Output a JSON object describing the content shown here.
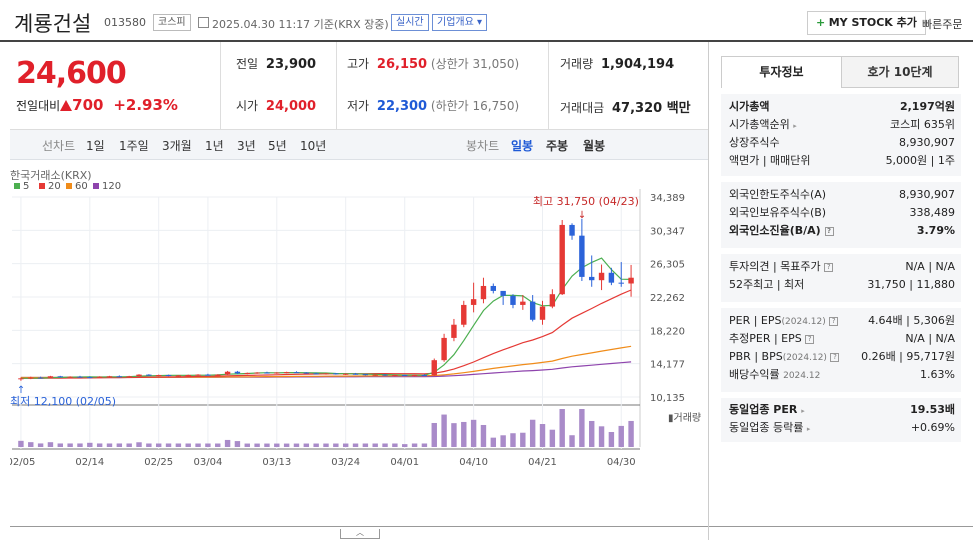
{
  "header": {
    "company_name": "계룡건설",
    "stock_code": "013580",
    "market_tag": "코스피",
    "datetime": "2025.04.30 11:17 기준(KRX 장중)",
    "realtime_tag": "실시간",
    "company_info_tag": "기업개요",
    "mystock_label": "MY STOCK 추가",
    "quick_order_label": "빠른주문"
  },
  "quote": {
    "price": "24,600",
    "change_label": "전일대비",
    "change_value": "700",
    "change_rate": "+2.93%",
    "prev_close_label": "전일",
    "prev_close": "23,900",
    "open_label": "시가",
    "open": "24,000",
    "high_label": "고가",
    "high": "26,150",
    "upper_limit": "(상한가 31,050)",
    "low_label": "저가",
    "low": "22,300",
    "lower_limit": "(하한가 16,750)",
    "volume_label": "거래량",
    "volume": "1,904,194",
    "amount_label": "거래대금",
    "amount": "47,320 백만"
  },
  "period_bar": {
    "select_label": "선차트",
    "periods": [
      "1일",
      "1주일",
      "3개월",
      "1년",
      "3년",
      "5년",
      "10년"
    ],
    "candle_label": "봉차트",
    "candles": [
      "일봉",
      "주봉",
      "월봉"
    ],
    "selected_candle": "일봉"
  },
  "chart_data": {
    "type": "candlestick",
    "source_label": "한국거래소(KRX)",
    "ma_legend": [
      {
        "name": "5",
        "color": "#4caf50"
      },
      {
        "name": "20",
        "color": "#e53935"
      },
      {
        "name": "60",
        "color": "#f08c1a"
      },
      {
        "name": "120",
        "color": "#8e44ad"
      }
    ],
    "y_ticks": [
      "34,389",
      "30,347",
      "26,305",
      "22,262",
      "18,220",
      "14,177",
      "10,135"
    ],
    "ylim": [
      10135,
      34389
    ],
    "x_ticks": [
      "02/05",
      "02/14",
      "02/25",
      "03/04",
      "03/13",
      "03/24",
      "04/01",
      "04/10",
      "04/21",
      "04/30"
    ],
    "high_annotation": "최고 31,750 (04/23)",
    "low_annotation": "최저 12,100 (02/05)",
    "volume_label": "거래량",
    "candles": [
      [
        12300,
        12500,
        12100,
        12400
      ],
      [
        12400,
        12600,
        12300,
        12500
      ],
      [
        12500,
        12600,
        12400,
        12450
      ],
      [
        12450,
        12700,
        12400,
        12650
      ],
      [
        12650,
        12700,
        12500,
        12550
      ],
      [
        12550,
        12650,
        12450,
        12600
      ],
      [
        12600,
        12700,
        12500,
        12550
      ],
      [
        12550,
        12650,
        12400,
        12500
      ],
      [
        12500,
        12650,
        12450,
        12600
      ],
      [
        12600,
        12700,
        12500,
        12650
      ],
      [
        12650,
        12750,
        12550,
        12600
      ],
      [
        12600,
        12700,
        12500,
        12650
      ],
      [
        12650,
        12900,
        12600,
        12850
      ],
      [
        12850,
        12900,
        12700,
        12750
      ],
      [
        12750,
        12850,
        12650,
        12800
      ],
      [
        12800,
        12850,
        12650,
        12700
      ],
      [
        12700,
        12800,
        12600,
        12750
      ],
      [
        12750,
        12850,
        12650,
        12800
      ],
      [
        12800,
        12900,
        12700,
        12850
      ],
      [
        12850,
        12950,
        12750,
        12800
      ],
      [
        12800,
        12900,
        12700,
        12850
      ],
      [
        12850,
        13300,
        12800,
        13200
      ],
      [
        13200,
        13300,
        12900,
        13000
      ],
      [
        13000,
        13100,
        12900,
        13050
      ],
      [
        13050,
        13150,
        12950,
        13100
      ],
      [
        13100,
        13200,
        13000,
        13050
      ],
      [
        13050,
        13150,
        12950,
        13100
      ],
      [
        13100,
        13200,
        13000,
        13150
      ],
      [
        13150,
        13250,
        13050,
        13100
      ],
      [
        13100,
        13150,
        12950,
        13000
      ],
      [
        13000,
        13100,
        12900,
        12950
      ],
      [
        12950,
        13050,
        12850,
        13000
      ],
      [
        13000,
        13050,
        12850,
        12900
      ],
      [
        12900,
        13000,
        12800,
        12950
      ],
      [
        12950,
        13050,
        12850,
        12900
      ],
      [
        12900,
        12950,
        12750,
        12800
      ],
      [
        12800,
        12900,
        12700,
        12850
      ],
      [
        12850,
        12900,
        12700,
        12750
      ],
      [
        12750,
        12850,
        12650,
        12800
      ],
      [
        12800,
        12850,
        12700,
        12750
      ],
      [
        12750,
        12850,
        12650,
        12800
      ],
      [
        12800,
        12900,
        12700,
        12750
      ],
      [
        12750,
        14800,
        12700,
        14600
      ],
      [
        14600,
        17800,
        14400,
        17300
      ],
      [
        17300,
        19600,
        16900,
        18900
      ],
      [
        18900,
        21800,
        18600,
        21300
      ],
      [
        21300,
        24000,
        20400,
        22000
      ],
      [
        22000,
        24600,
        21500,
        23600
      ],
      [
        23600,
        23900,
        22700,
        23000
      ],
      [
        23000,
        22800,
        21300,
        22400
      ],
      [
        22400,
        22600,
        20900,
        21300
      ],
      [
        21300,
        22500,
        20700,
        21700
      ],
      [
        21700,
        22500,
        19300,
        19500
      ],
      [
        19500,
        21800,
        18900,
        21100
      ],
      [
        21100,
        23200,
        20900,
        22600
      ],
      [
        22600,
        31600,
        22500,
        31000
      ],
      [
        31000,
        31200,
        29200,
        29700
      ],
      [
        29700,
        31750,
        24200,
        24700
      ],
      [
        24700,
        27300,
        23500,
        24300
      ],
      [
        24300,
        26200,
        23100,
        25200
      ],
      [
        25200,
        25800,
        23700,
        24000
      ],
      [
        24000,
        26500,
        23500,
        23900
      ],
      [
        23900,
        26150,
        22300,
        24600
      ]
    ]
  },
  "right_panel": {
    "tabs": [
      "투자정보",
      "호가 10단계"
    ],
    "sec1": [
      {
        "k": "시가총액",
        "v": "2,197억원"
      },
      {
        "k": "시가총액순위",
        "v": "코스피 635위"
      },
      {
        "k": "상장주식수",
        "v": "8,930,907"
      },
      {
        "k": "액면가 | 매매단위",
        "v": "5,000원 | 1주"
      }
    ],
    "sec2": [
      {
        "k": "외국인한도주식수(A)",
        "v": "8,930,907"
      },
      {
        "k": "외국인보유주식수(B)",
        "v": "338,489"
      },
      {
        "k": "외국인소진율(B/A)",
        "v": "3.79%"
      }
    ],
    "sec3": [
      {
        "k": "투자의견 | 목표주가",
        "v": "N/A | N/A"
      },
      {
        "k": "52주최고 | 최저",
        "v": "31,750 | 11,880"
      }
    ],
    "sec4": [
      {
        "k": "PER | EPS",
        "ks": "(2024.12)",
        "v": "4.64배 | 5,306원"
      },
      {
        "k": "추정PER | EPS",
        "v": "N/A | N/A"
      },
      {
        "k": "PBR | BPS",
        "ks": "(2024.12)",
        "v": "0.26배 | 95,717원"
      },
      {
        "k": "배당수익률",
        "ks": "2024.12",
        "v": "1.63%"
      }
    ],
    "sec5": [
      {
        "k": "동일업종 PER",
        "v": "19.53배"
      },
      {
        "k": "동일업종 등락률",
        "v": "+0.69%"
      }
    ]
  }
}
